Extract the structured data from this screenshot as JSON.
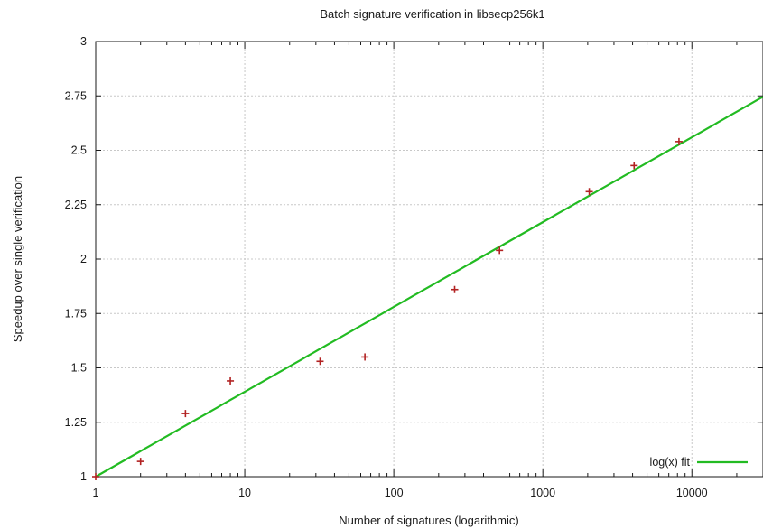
{
  "chart_data": {
    "type": "scatter",
    "title": "Batch signature verification in libsecp256k1",
    "xlabel": "Number of signatures (logarithmic)",
    "ylabel": "Speedup over single verification",
    "xscale": "log",
    "xlim": [
      1,
      30000
    ],
    "ylim": [
      1,
      3
    ],
    "grid": true,
    "legend_position": "bottom-right",
    "x_ticks": [
      1,
      10,
      100,
      1000,
      10000
    ],
    "x_tick_labels": [
      "1",
      "10",
      "100",
      "1000",
      "10000"
    ],
    "y_ticks": [
      1,
      1.25,
      1.5,
      1.75,
      2,
      2.25,
      2.5,
      2.75,
      3
    ],
    "y_tick_labels": [
      "1",
      "1.25",
      "1.5",
      "1.75",
      "2",
      "2.25",
      "2.5",
      "2.75",
      "3"
    ],
    "series": [
      {
        "marker": "cross",
        "color": "#b22222",
        "points": [
          {
            "x": 1,
            "y": 1.0
          },
          {
            "x": 2,
            "y": 1.07
          },
          {
            "x": 4,
            "y": 1.29
          },
          {
            "x": 8,
            "y": 1.44
          },
          {
            "x": 32,
            "y": 1.53
          },
          {
            "x": 64,
            "y": 1.55
          },
          {
            "x": 256,
            "y": 1.86
          },
          {
            "x": 512,
            "y": 2.04
          },
          {
            "x": 2048,
            "y": 2.31
          },
          {
            "x": 4096,
            "y": 2.43
          },
          {
            "x": 8192,
            "y": 2.54
          }
        ]
      },
      {
        "name": "log(x) fit",
        "type": "line",
        "color": "#22bb22",
        "fit": {
          "form": "a + b*log10(x)",
          "a": 1.0,
          "b": 0.39
        }
      }
    ]
  }
}
